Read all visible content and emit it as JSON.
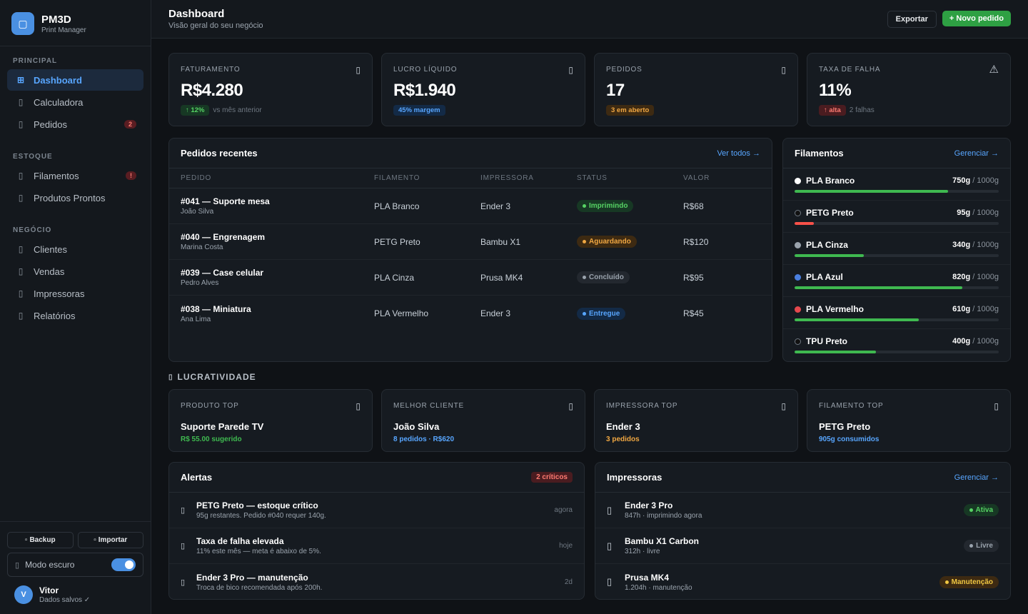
{
  "brand": {
    "name": "PM3D",
    "subtitle": "Print Manager",
    "logo_icon": "printer-icon"
  },
  "sidebar": {
    "sections": [
      {
        "label": "PRINCIPAL",
        "items": [
          {
            "label": "Dashboard",
            "icon": "grid-icon",
            "active": true
          },
          {
            "label": "Calculadora",
            "icon": "calculator-icon"
          },
          {
            "label": "Pedidos",
            "icon": "clipboard-icon",
            "badge": "2"
          }
        ]
      },
      {
        "label": "ESTOQUE",
        "items": [
          {
            "label": "Filamentos",
            "icon": "spool-icon",
            "badge": "!"
          },
          {
            "label": "Produtos Prontos",
            "icon": "box-icon"
          }
        ]
      },
      {
        "label": "NEGÓCIO",
        "items": [
          {
            "label": "Clientes",
            "icon": "users-icon"
          },
          {
            "label": "Vendas",
            "icon": "cart-icon"
          },
          {
            "label": "Impressoras",
            "icon": "printer-icon"
          },
          {
            "label": "Relatórios",
            "icon": "chart-icon"
          }
        ]
      }
    ],
    "backup_label": "Backup",
    "import_label": "Importar",
    "dark_mode_label": "Modo escuro",
    "dark_mode_on": true,
    "user": {
      "initial": "V",
      "name": "Vitor",
      "status": "Dados salvos ✓"
    }
  },
  "header": {
    "title": "Dashboard",
    "subtitle": "Visão geral do seu negócio",
    "export_label": "Exportar",
    "new_order_label": "+ Novo pedido"
  },
  "stats": [
    {
      "label": "FATURAMENTO",
      "icon": "money-icon",
      "value": "R$4.280",
      "pill": "↑ 12%",
      "pill_color": "green",
      "note": "vs mês anterior"
    },
    {
      "label": "LUCRO LÍQUIDO",
      "icon": "wallet-icon",
      "value": "R$1.940",
      "pill": "45% margem",
      "pill_color": "blue",
      "note": ""
    },
    {
      "label": "PEDIDOS",
      "icon": "package-icon",
      "value": "17",
      "pill": "3 em aberto",
      "pill_color": "orange",
      "note": ""
    },
    {
      "label": "TAXA DE FALHA",
      "icon": "warning-icon",
      "value": "11%",
      "pill": "↑ alta",
      "pill_color": "red",
      "note": "2 falhas"
    }
  ],
  "orders": {
    "title": "Pedidos recentes",
    "link": "Ver todos →",
    "columns": [
      "PEDIDO",
      "FILAMENTO",
      "IMPRESSORA",
      "STATUS",
      "VALOR"
    ],
    "rows": [
      {
        "name": "#041 — Suporte mesa",
        "client": "João Silva",
        "filament": "PLA Branco",
        "printer": "Ender 3",
        "status": "Imprimindo",
        "status_color": "green",
        "value": "R$68"
      },
      {
        "name": "#040 — Engrenagem",
        "client": "Marina Costa",
        "filament": "PETG Preto",
        "printer": "Bambu X1",
        "status": "Aguardando",
        "status_color": "orange",
        "value": "R$120"
      },
      {
        "name": "#039 — Case celular",
        "client": "Pedro Alves",
        "filament": "PLA Cinza",
        "printer": "Prusa MK4",
        "status": "Concluído",
        "status_color": "grey",
        "value": "R$95"
      },
      {
        "name": "#038 — Miniatura",
        "client": "Ana Lima",
        "filament": "PLA Vermelho",
        "printer": "Ender 3",
        "status": "Entregue",
        "status_color": "blue",
        "value": "R$45"
      }
    ]
  },
  "filaments": {
    "title": "Filamentos",
    "link": "Gerenciar →",
    "items": [
      {
        "name": "PLA Branco",
        "amount": "750g",
        "total": " / 1000g",
        "level": 0.75,
        "dot": "#ffffff",
        "bar": "#3fb950"
      },
      {
        "name": "PETG Preto",
        "amount": "95g",
        "total": " / 1000g",
        "level": 0.095,
        "dot": "#111111",
        "bar": "#f85149"
      },
      {
        "name": "PLA Cinza",
        "amount": "340g",
        "total": " / 1000g",
        "level": 0.34,
        "dot": "#9aa3ad",
        "bar": "#3fb950"
      },
      {
        "name": "PLA Azul",
        "amount": "820g",
        "total": " / 1000g",
        "level": 0.82,
        "dot": "#4a7fe0",
        "bar": "#3fb950"
      },
      {
        "name": "PLA Vermelho",
        "amount": "610g",
        "total": " / 1000g",
        "level": 0.61,
        "dot": "#e5484d",
        "bar": "#3fb950"
      },
      {
        "name": "TPU Preto",
        "amount": "400g",
        "total": " / 1000g",
        "level": 0.4,
        "dot": "#111111",
        "bar": "#3fb950"
      }
    ]
  },
  "lucratividade": {
    "heading": "LUCRATIVIDADE",
    "cards": [
      {
        "label": "PRODUTO TOP",
        "icon": "trophy-icon",
        "value": "Suporte Parede TV",
        "sub": "R$ 55.00 sugerido",
        "sub_color": "#3fb950"
      },
      {
        "label": "MELHOR CLIENTE",
        "icon": "star-icon",
        "value": "João Silva",
        "sub": "8 pedidos · R$620",
        "sub_color": "#58a6ff"
      },
      {
        "label": "IMPRESSORA TOP",
        "icon": "printer-icon",
        "value": "Ender 3",
        "sub": "3 pedidos",
        "sub_color": "#f0a742"
      },
      {
        "label": "FILAMENTO TOP",
        "icon": "spool-icon",
        "value": "PETG Preto",
        "sub": "905g consumidos",
        "sub_color": "#58a6ff"
      }
    ]
  },
  "alerts": {
    "title": "Alertas",
    "badge": "2 críticos",
    "items": [
      {
        "icon": "alert-icon",
        "title": "PETG Preto — estoque crítico",
        "desc": "95g restantes. Pedido #040 requer 140g.",
        "time": "agora"
      },
      {
        "icon": "alert-icon",
        "title": "Taxa de falha elevada",
        "desc": "11% este mês — meta é abaixo de 5%.",
        "time": "hoje"
      },
      {
        "icon": "wrench-icon",
        "title": "Ender 3 Pro — manutenção",
        "desc": "Troca de bico recomendada após 200h.",
        "time": "2d"
      }
    ]
  },
  "printers": {
    "title": "Impressoras",
    "link": "Gerenciar →",
    "items": [
      {
        "name": "Ender 3 Pro",
        "desc": "847h · imprimindo agora",
        "status": "Ativa",
        "status_color": "green"
      },
      {
        "name": "Bambu X1 Carbon",
        "desc": "312h · livre",
        "status": "Livre",
        "status_color": "grey"
      },
      {
        "name": "Prusa MK4",
        "desc": "1.204h · manutenção",
        "status": "Manutenção",
        "status_color": "orange"
      }
    ]
  }
}
